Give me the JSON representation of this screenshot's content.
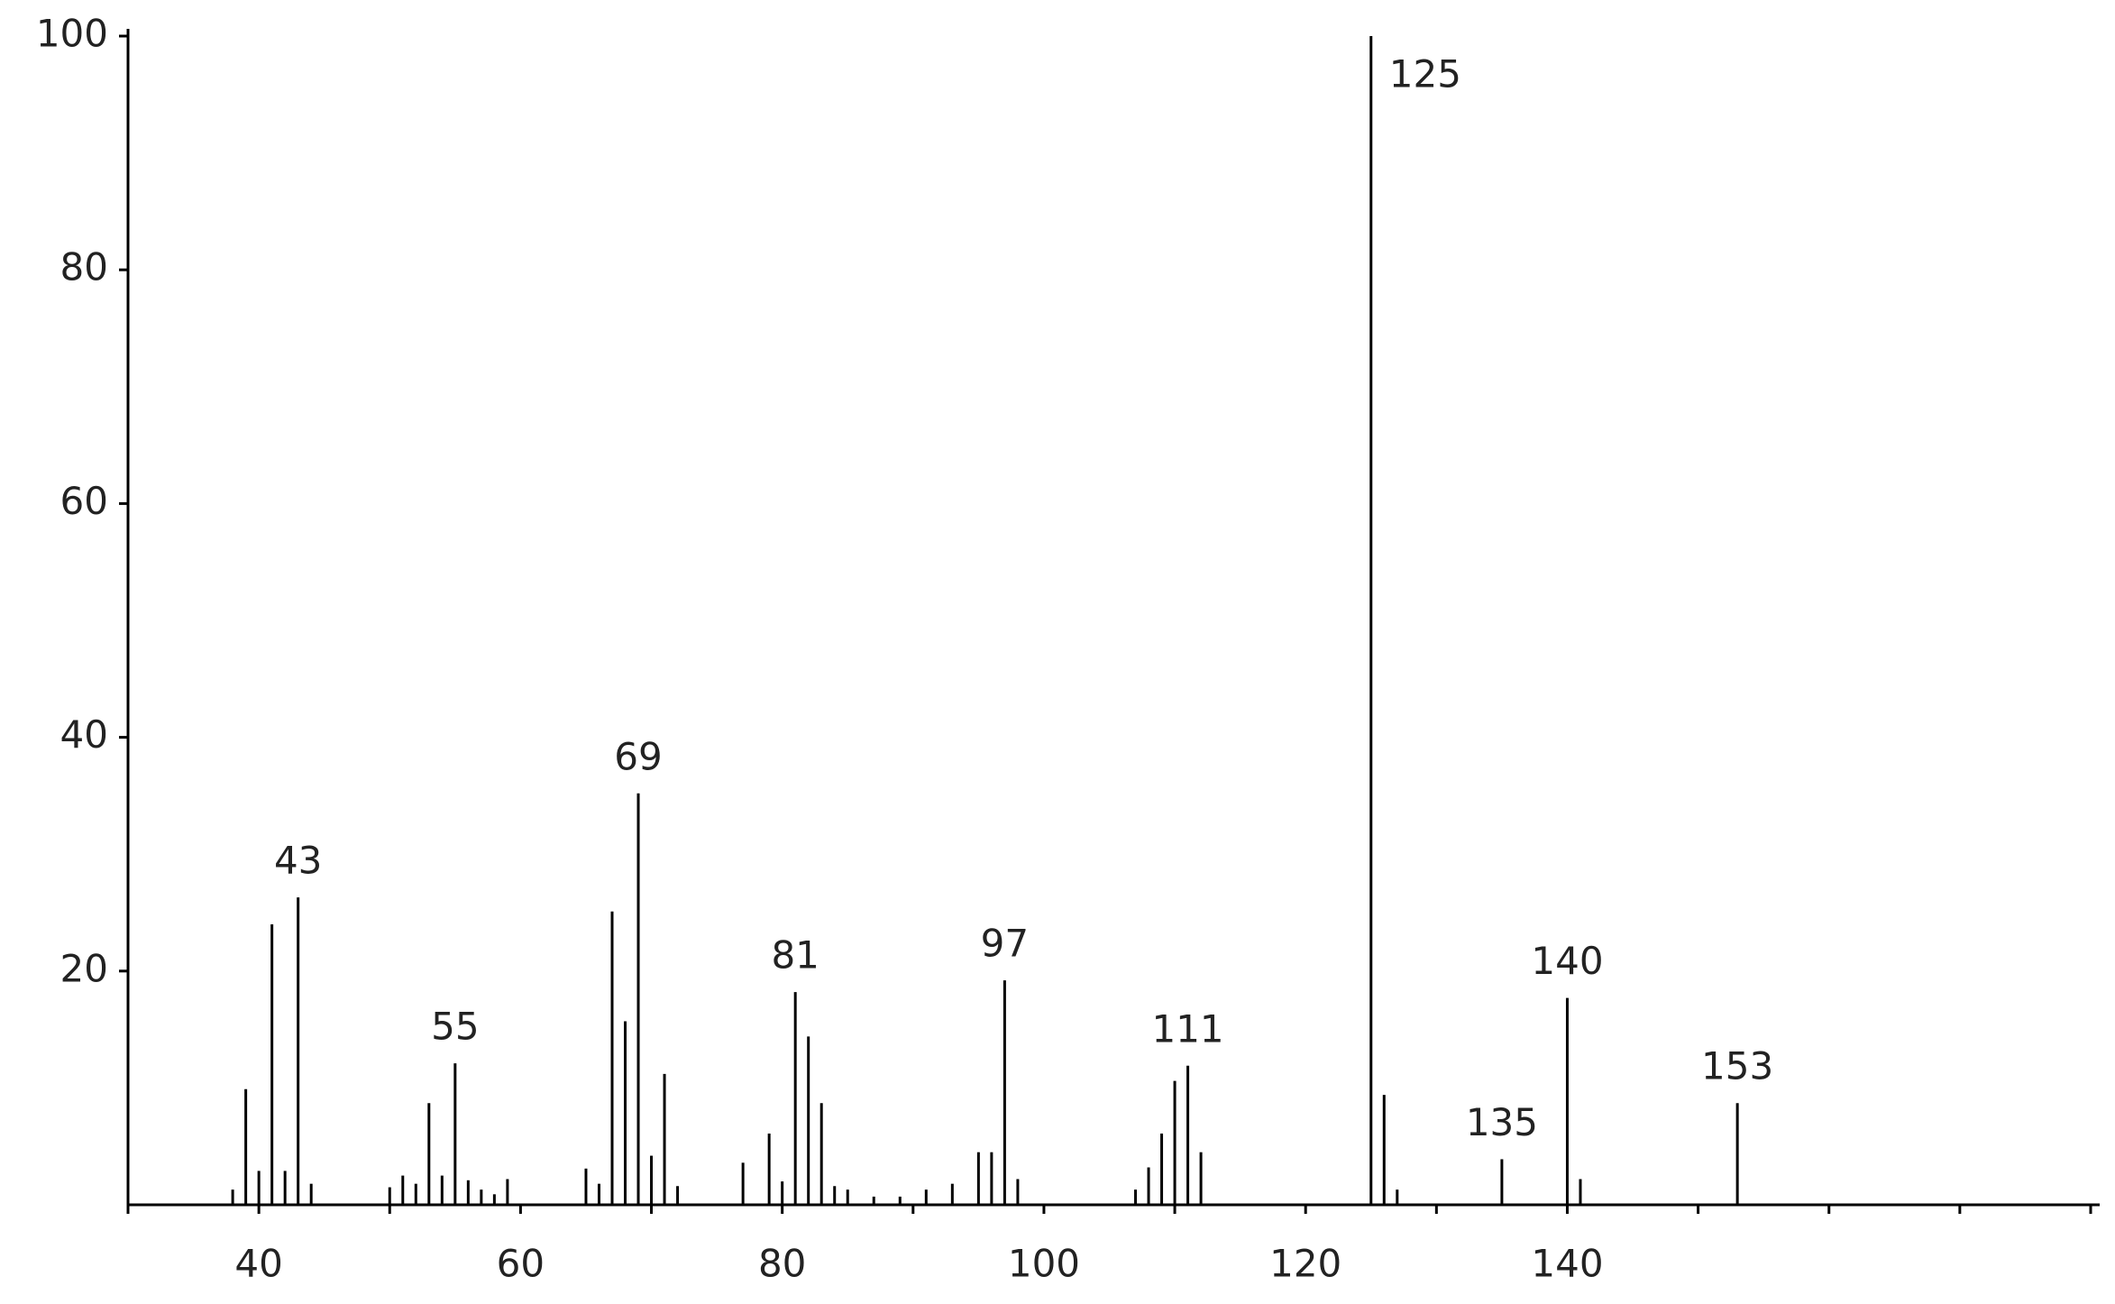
{
  "chart_data": {
    "type": "stick",
    "x": [
      38,
      39,
      40,
      41,
      42,
      43,
      44,
      50,
      51,
      52,
      53,
      54,
      55,
      56,
      57,
      58,
      59,
      65,
      66,
      67,
      68,
      69,
      70,
      71,
      72,
      77,
      79,
      80,
      81,
      82,
      83,
      84,
      85,
      87,
      89,
      91,
      93,
      95,
      96,
      97,
      98,
      107,
      108,
      109,
      110,
      111,
      112,
      125,
      126,
      127,
      135,
      140,
      141,
      153
    ],
    "values": [
      1.3,
      9.9,
      2.9,
      24,
      2.9,
      26.3,
      1.8,
      1.5,
      2.5,
      1.8,
      8.7,
      2.5,
      12.1,
      2.1,
      1.3,
      0.9,
      2.2,
      3.1,
      1.8,
      25.1,
      15.7,
      35.2,
      4.2,
      11.2,
      1.6,
      3.6,
      6.1,
      2.0,
      18.2,
      14.4,
      8.7,
      1.6,
      1.3,
      0.7,
      0.7,
      1.3,
      1.8,
      4.5,
      4.5,
      19.2,
      2.2,
      1.3,
      3.2,
      6.1,
      10.6,
      11.9,
      4.5,
      100,
      9.4,
      1.3,
      3.9,
      17.7,
      2.2,
      8.7
    ],
    "annotations": [
      43,
      55,
      69,
      81,
      97,
      111,
      125,
      135,
      140,
      153
    ],
    "color": "#000000",
    "xlim": [
      30,
      180
    ],
    "xticks": [
      40,
      60,
      80,
      100,
      120,
      140
    ],
    "xtick_marks": [
      30,
      40,
      50,
      60,
      70,
      80,
      90,
      100,
      110,
      120,
      130,
      140,
      150,
      160,
      170,
      180
    ],
    "ylim": [
      0,
      100
    ],
    "yticks": [
      20,
      40,
      60,
      80,
      100
    ],
    "grid": false
  }
}
